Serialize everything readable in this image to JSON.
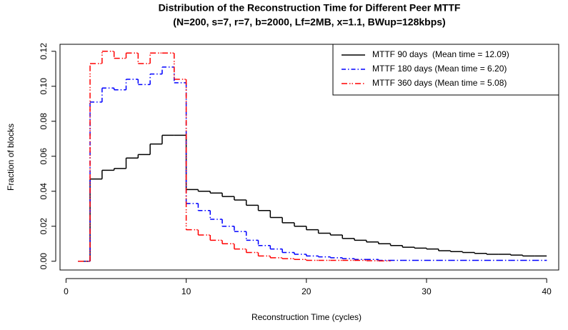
{
  "chart_data": {
    "type": "step",
    "title": "Distribution of the Reconstruction Time for Different Peer MTTF",
    "subtitle": "(N=200, s=7, r=7, b=2000, Lf=2MB, x=1.1, BWup=128kbps)",
    "x_label": "Reconstruction Time (cycles)",
    "y_label": "Fraction of blocks",
    "x": [
      1,
      2,
      3,
      4,
      5,
      6,
      7,
      8,
      9,
      10,
      11,
      12,
      13,
      14,
      15,
      16,
      17,
      18,
      19,
      20,
      21,
      22,
      23,
      24,
      25,
      26,
      27,
      28,
      29,
      30,
      31,
      32,
      33,
      34,
      35,
      36,
      37,
      38,
      39,
      40
    ],
    "series": [
      {
        "name": "MTTF 90 days  (Mean time = 12.09)",
        "color": "#000000",
        "values": [
          0,
          0.047,
          0.052,
          0.053,
          0.059,
          0.061,
          0.067,
          0.072,
          0.072,
          0.041,
          0.04,
          0.039,
          0.037,
          0.035,
          0.032,
          0.029,
          0.025,
          0.022,
          0.02,
          0.018,
          0.016,
          0.015,
          0.013,
          0.012,
          0.011,
          0.01,
          0.009,
          0.008,
          0.0075,
          0.007,
          0.006,
          0.0055,
          0.005,
          0.0045,
          0.004,
          0.004,
          0.0035,
          0.003,
          0.003,
          0.003
        ]
      },
      {
        "name": "MTTF 180 days (Mean time = 6.20)",
        "color": "#0000ff",
        "values": [
          0,
          0.091,
          0.099,
          0.098,
          0.104,
          0.101,
          0.107,
          0.111,
          0.102,
          0.033,
          0.029,
          0.024,
          0.02,
          0.017,
          0.012,
          0.009,
          0.007,
          0.005,
          0.004,
          0.003,
          0.0025,
          0.002,
          0.0015,
          0.001,
          0.001,
          0.0005,
          0.0005,
          0.0005,
          0.0005,
          0.0005,
          0.0005,
          0.0005,
          0.0005,
          0.0005,
          0.0005,
          0.0005,
          0.0005,
          0.0005,
          0.0005,
          0.0005
        ]
      },
      {
        "name": "MTTF 360 days (Mean time = 5.08)",
        "color": "#ff0000",
        "values": [
          0,
          0.113,
          0.12,
          0.116,
          0.119,
          0.113,
          0.119,
          0.119,
          0.104,
          0.018,
          0.015,
          0.012,
          0.01,
          0.007,
          0.005,
          0.003,
          0.002,
          0.0015,
          0.001,
          0.0005,
          0.0005,
          0.0005,
          0.0005,
          0.0005,
          0.0003,
          0.0002,
          0,
          null,
          null,
          null,
          null,
          null,
          null,
          null,
          null,
          null,
          null,
          null,
          null,
          null
        ]
      }
    ],
    "xlim": [
      -0.5,
      41
    ],
    "ylim": [
      -0.005,
      0.124
    ],
    "xticks": [
      0,
      10,
      20,
      30,
      40
    ],
    "yticks": [
      {
        "value": 0,
        "label": "0.00"
      },
      {
        "value": 0.02,
        "label": "0.02"
      },
      {
        "value": 0.04,
        "label": "0.04"
      },
      {
        "value": 0.06,
        "label": "0.06"
      },
      {
        "value": 0.08,
        "label": "0.08"
      },
      {
        "value": 0.1,
        "label": "0.10"
      },
      {
        "value": 0.12,
        "label": "0.12"
      }
    ],
    "legend": "top-right"
  }
}
